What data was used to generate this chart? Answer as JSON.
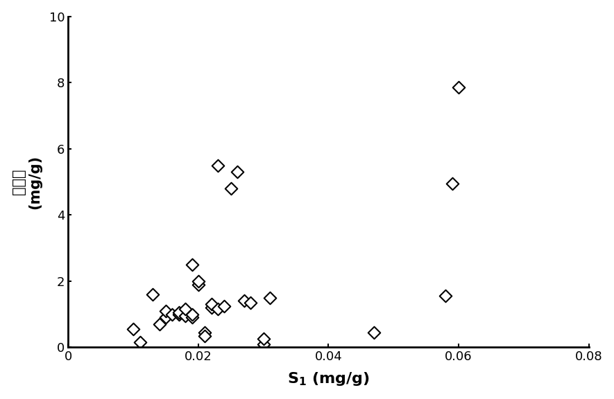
{
  "x_data": [
    0.01,
    0.011,
    0.013,
    0.014,
    0.015,
    0.015,
    0.016,
    0.017,
    0.017,
    0.018,
    0.018,
    0.019,
    0.019,
    0.019,
    0.02,
    0.02,
    0.021,
    0.021,
    0.022,
    0.022,
    0.023,
    0.023,
    0.024,
    0.025,
    0.026,
    0.027,
    0.028,
    0.03,
    0.03,
    0.031,
    0.047,
    0.058,
    0.059,
    0.06
  ],
  "y_data": [
    0.55,
    0.15,
    1.6,
    0.7,
    0.9,
    1.1,
    1.0,
    1.0,
    1.05,
    0.95,
    1.15,
    0.9,
    1.0,
    2.5,
    1.9,
    2.0,
    0.45,
    0.35,
    1.2,
    1.3,
    5.5,
    1.15,
    1.25,
    4.8,
    5.3,
    1.4,
    1.35,
    0.1,
    0.25,
    1.5,
    0.45,
    1.55,
    4.95,
    7.85
  ],
  "xlabel_main": "S",
  "xlabel_sub": "1",
  "xlabel_unit": " (mg/g)",
  "ylabel_line1": "无效碳",
  "ylabel_line2": "(mg/g)",
  "xlim": [
    0,
    0.08
  ],
  "ylim": [
    0,
    10
  ],
  "xticks": [
    0,
    0.02,
    0.04,
    0.06,
    0.08
  ],
  "yticks": [
    0,
    2,
    4,
    6,
    8,
    10
  ],
  "marker_color": "#000000",
  "marker_facecolor": "white",
  "marker_size": 80,
  "marker_linewidth": 1.5,
  "background_color": "white",
  "xlabel_fontsize": 16,
  "ylabel_fontsize": 15,
  "tick_fontsize": 13,
  "spine_linewidth": 2.0
}
